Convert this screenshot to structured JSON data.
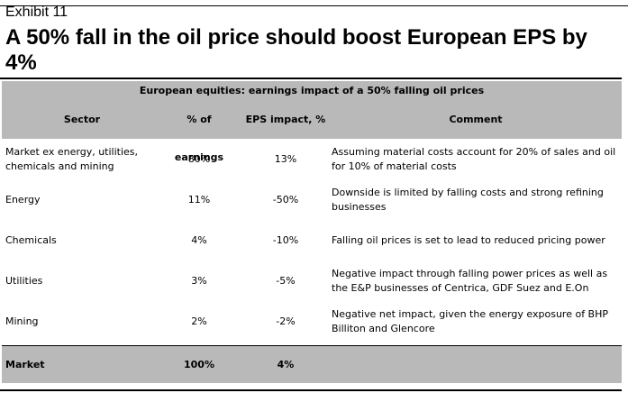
{
  "exhibit": "Exhibit 11",
  "title": "A 50% fall in the oil price should boost European EPS by 4%",
  "table": {
    "caption": "European equities: earnings impact of a 50% falling oil prices",
    "headers": {
      "sector": "Sector",
      "pct_earnings": "% of earnings",
      "eps_impact": "EPS impact, %",
      "comment": "Comment"
    },
    "rows": [
      {
        "sector": "Market ex energy, utilities, chemicals and mining",
        "pct_earnings": "80%",
        "eps_impact": "13%",
        "comment": "Assuming material costs account for 20% of sales and oil for 10% of material costs"
      },
      {
        "sector": "Energy",
        "pct_earnings": "11%",
        "eps_impact": "-50%",
        "comment": "Downside is limited by falling costs and strong refining businesses"
      },
      {
        "sector": "Chemicals",
        "pct_earnings": "4%",
        "eps_impact": "-10%",
        "comment": "Falling oil prices is set to lead to reduced pricing power"
      },
      {
        "sector": "Utilities",
        "pct_earnings": "3%",
        "eps_impact": "-5%",
        "comment": "Negative impact through falling power prices as well as the E&P businesses of Centrica, GDF Suez and E.On"
      },
      {
        "sector": "Mining",
        "pct_earnings": "2%",
        "eps_impact": "-2%",
        "comment": "Negative net impact, given the energy exposure of BHP Billiton and Glencore"
      }
    ],
    "total": {
      "sector": "Market",
      "pct_earnings": "100%",
      "eps_impact": "4%",
      "comment": ""
    }
  }
}
